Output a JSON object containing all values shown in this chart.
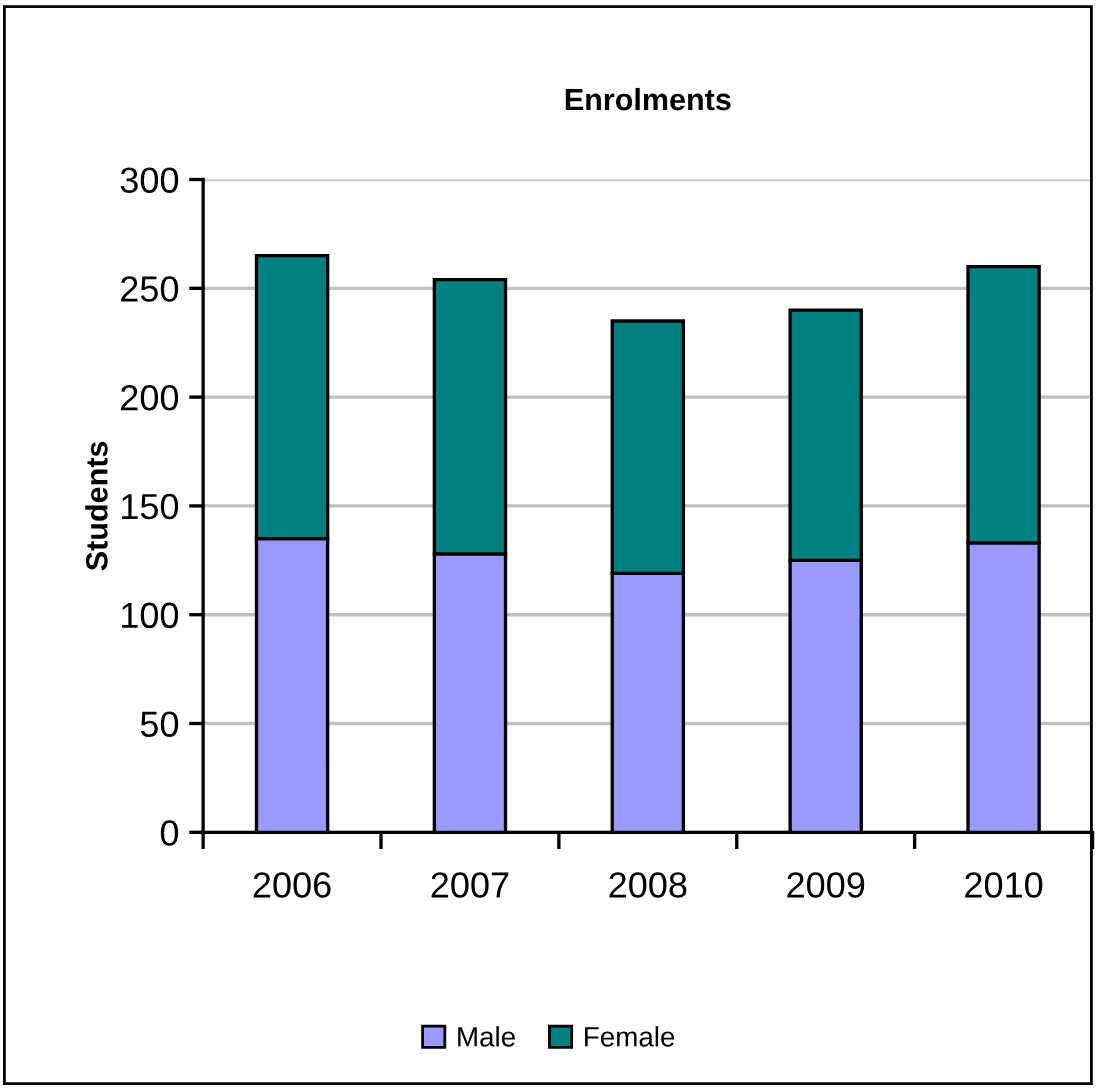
{
  "chart_data": {
    "type": "bar",
    "title": "Enrolments",
    "ylabel": "Students",
    "categories": [
      "2006",
      "2007",
      "2008",
      "2009",
      "2010"
    ],
    "series": [
      {
        "name": "Male",
        "color": "#9999ff",
        "values": [
          135,
          128,
          119,
          125,
          133
        ]
      },
      {
        "name": "Female",
        "color": "#008080",
        "values": [
          130,
          126,
          116,
          115,
          127
        ]
      }
    ],
    "stacked": true,
    "ylim": [
      0,
      300
    ],
    "yticks": [
      0,
      50,
      100,
      150,
      200,
      250,
      300
    ],
    "grid": "y",
    "legend": "bottom"
  }
}
